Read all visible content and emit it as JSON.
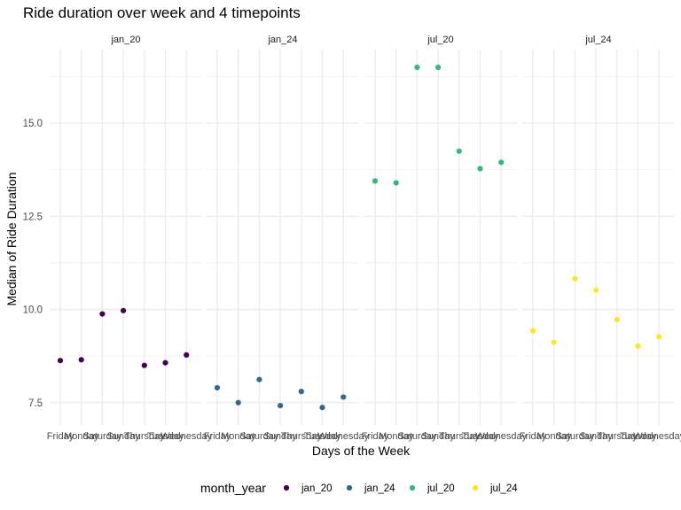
{
  "chart_data": {
    "type": "scatter",
    "title": "Ride duration over week and 4 timepoints",
    "xlabel": "Days of the Week",
    "ylabel": "Median of Ride Duration",
    "categories": [
      "Friday",
      "Monday",
      "Saturday",
      "Sunday",
      "Thursday",
      "Tuesday",
      "Wednesday"
    ],
    "yticks": [
      "7.5",
      "10.0",
      "12.5",
      "15.0"
    ],
    "ylim": [
      6.9,
      17.0
    ],
    "grid": true,
    "facets": [
      "jan_20",
      "jan_24",
      "jul_20",
      "jul_24"
    ],
    "legend": {
      "title": "month_year",
      "position": "bottom"
    },
    "series": [
      {
        "name": "jan_20",
        "color": "#440154",
        "values": [
          8.63,
          8.65,
          9.88,
          9.97,
          8.5,
          8.57,
          8.78
        ]
      },
      {
        "name": "jan_24",
        "color": "#31688E",
        "values": [
          7.9,
          7.5,
          8.12,
          7.42,
          7.8,
          7.37,
          7.65
        ]
      },
      {
        "name": "jul_20",
        "color": "#35B779",
        "values": [
          13.45,
          13.4,
          16.5,
          16.5,
          14.25,
          13.78,
          13.95
        ]
      },
      {
        "name": "jul_24",
        "color": "#FDE725",
        "values": [
          9.43,
          9.12,
          10.83,
          10.52,
          9.73,
          9.02,
          9.27
        ]
      }
    ]
  }
}
